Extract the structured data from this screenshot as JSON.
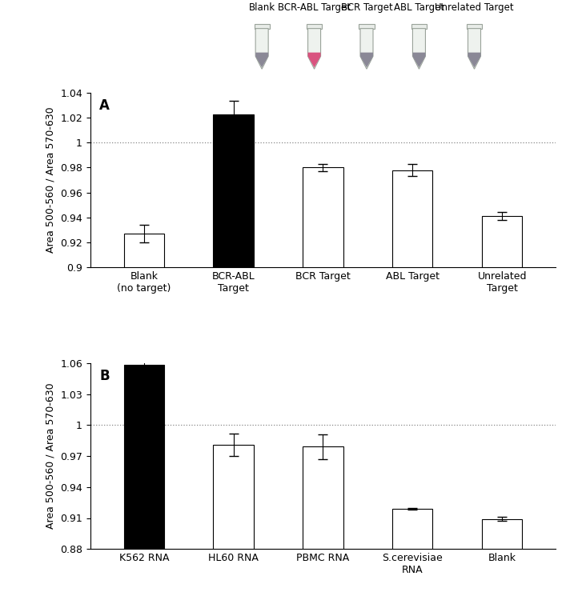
{
  "tube_images": {
    "labels": [
      "Blank",
      "BCR-ABL Target",
      "BCR Target",
      "ABL Target",
      "Unrelated Target"
    ]
  },
  "chart_data": [
    {
      "type": "bar",
      "title": "A",
      "y_label": "Area 500-560 / Area 570-630",
      "categories": [
        "Blank\n(no target)",
        "BCR-ABL\nTarget",
        "BCR Target",
        "ABL Target",
        "Unrelated\nTarget"
      ],
      "values": [
        0.927,
        1.023,
        0.98,
        0.978,
        0.941
      ],
      "errors": [
        0.007,
        0.011,
        0.003,
        0.005,
        0.003
      ],
      "colors": [
        "#ffffff",
        "#000000",
        "#ffffff",
        "#ffffff",
        "#ffffff"
      ],
      "reference_line": 1,
      "ylim": [
        0.9,
        1.04
      ],
      "yticks": [
        0.9,
        0.92,
        0.94,
        0.96,
        0.98,
        1,
        1.02,
        1.04
      ],
      "grid": false
    },
    {
      "type": "bar",
      "title": "B",
      "y_label": "Area 500-560 / Area 570-630",
      "categories": [
        "K562 RNA",
        "HL60 RNA",
        "PBMC RNA",
        "S.cerevisiae\nRNA",
        "Blank"
      ],
      "values": [
        1.058,
        0.981,
        0.979,
        0.919,
        0.909
      ],
      "errors": [
        0.004,
        0.011,
        0.012,
        0.001,
        0.002
      ],
      "colors": [
        "#000000",
        "#ffffff",
        "#ffffff",
        "#ffffff",
        "#ffffff"
      ],
      "reference_line": 1,
      "ylim": [
        0.88,
        1.06
      ],
      "yticks": [
        0.88,
        0.91,
        0.94,
        0.97,
        1,
        1.03,
        1.06
      ],
      "grid": false
    }
  ]
}
